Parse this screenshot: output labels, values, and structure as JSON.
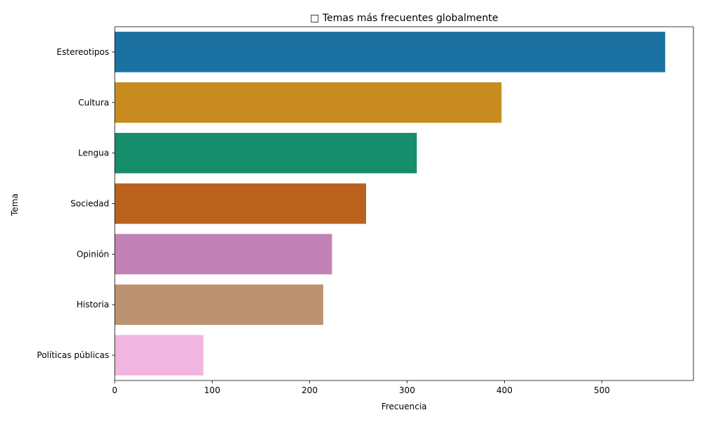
{
  "chart_data": {
    "type": "bar",
    "orientation": "horizontal",
    "title": "□ Temas más frecuentes globalmente",
    "xlabel": "Frecuencia",
    "ylabel": "Tema",
    "categories": [
      "Estereotipos",
      "Cultura",
      "Lengua",
      "Sociedad",
      "Opinión",
      "Historia",
      "Políticas públicas"
    ],
    "values": [
      565,
      397,
      310,
      258,
      223,
      214,
      91
    ],
    "colors": [
      "#1a71a2",
      "#c78b1f",
      "#168d6b",
      "#ba621d",
      "#c282b6",
      "#bc9270",
      "#f1b6e0"
    ],
    "xlim": [
      0,
      594
    ],
    "xticks": [
      0,
      100,
      200,
      300,
      400,
      500
    ],
    "grid": false,
    "legend": "none"
  }
}
